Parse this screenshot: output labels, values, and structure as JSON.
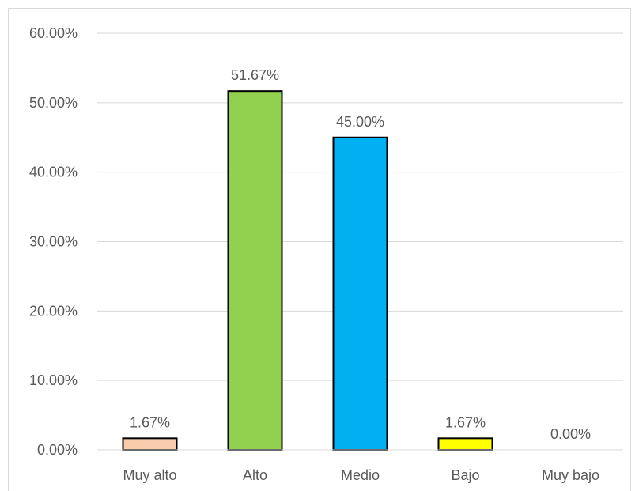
{
  "chart_data": {
    "type": "bar",
    "categories": [
      "Muy alto",
      "Alto",
      "Medio",
      "Bajo",
      "Muy bajo"
    ],
    "values": [
      1.67,
      51.67,
      45.0,
      1.67,
      0.0
    ],
    "data_labels": [
      "1.67%",
      "51.67%",
      "45.00%",
      "1.67%",
      "0.00%"
    ],
    "colors": [
      "#F8CBAD",
      "#92D050",
      "#00B0F0",
      "#FFFF00",
      "#FFFFFF"
    ],
    "ylim": [
      0,
      60
    ],
    "yticks": [
      0,
      10,
      20,
      30,
      40,
      50,
      60
    ],
    "ytick_labels": [
      "0.00%",
      "10.00%",
      "20.00%",
      "30.00%",
      "40.00%",
      "50.00%",
      "60.00%"
    ],
    "grid": true,
    "title": "",
    "xlabel": "",
    "ylabel": ""
  }
}
